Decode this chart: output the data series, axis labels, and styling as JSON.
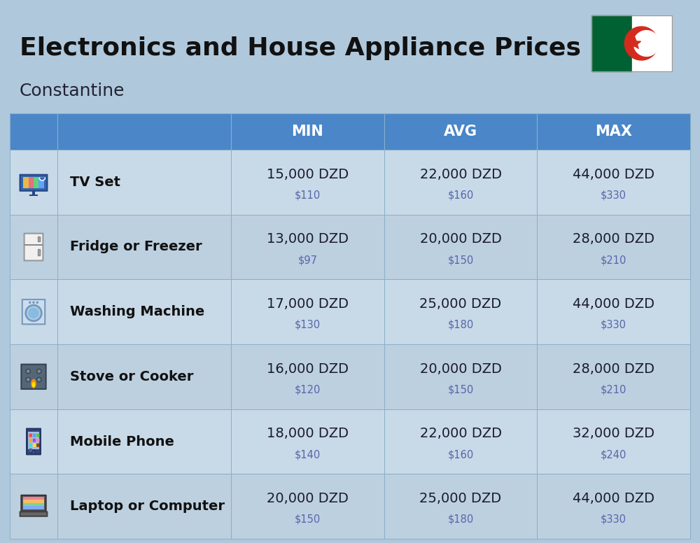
{
  "title": "Electronics and House Appliance Prices",
  "subtitle": "Constantine",
  "bg_color": "#b0c8dc",
  "header_bg": "#4a86c8",
  "header_text_color": "#ffffff",
  "row_bg_even": "#c8d9e8",
  "row_bg_odd": "#bdd0e0",
  "cell_line_color": "#8aafc8",
  "item_name_color": "#111111",
  "price_dzd_color": "#1a1a2e",
  "price_usd_color": "#5566aa",
  "headers": [
    "MIN",
    "AVG",
    "MAX"
  ],
  "rows": [
    {
      "name": "TV Set",
      "min_dzd": "15,000 DZD",
      "min_usd": "$110",
      "avg_dzd": "22,000 DZD",
      "avg_usd": "$160",
      "max_dzd": "44,000 DZD",
      "max_usd": "$330"
    },
    {
      "name": "Fridge or Freezer",
      "min_dzd": "13,000 DZD",
      "min_usd": "$97",
      "avg_dzd": "20,000 DZD",
      "avg_usd": "$150",
      "max_dzd": "28,000 DZD",
      "max_usd": "$210"
    },
    {
      "name": "Washing Machine",
      "min_dzd": "17,000 DZD",
      "min_usd": "$130",
      "avg_dzd": "25,000 DZD",
      "avg_usd": "$180",
      "max_dzd": "44,000 DZD",
      "max_usd": "$330"
    },
    {
      "name": "Stove or Cooker",
      "min_dzd": "16,000 DZD",
      "min_usd": "$120",
      "avg_dzd": "20,000 DZD",
      "avg_usd": "$150",
      "max_dzd": "28,000 DZD",
      "max_usd": "$210"
    },
    {
      "name": "Mobile Phone",
      "min_dzd": "18,000 DZD",
      "min_usd": "$140",
      "avg_dzd": "22,000 DZD",
      "avg_usd": "$160",
      "max_dzd": "32,000 DZD",
      "max_usd": "$240"
    },
    {
      "name": "Laptop or Computer",
      "min_dzd": "20,000 DZD",
      "min_usd": "$150",
      "avg_dzd": "25,000 DZD",
      "avg_usd": "$180",
      "max_dzd": "44,000 DZD",
      "max_usd": "$330"
    }
  ]
}
